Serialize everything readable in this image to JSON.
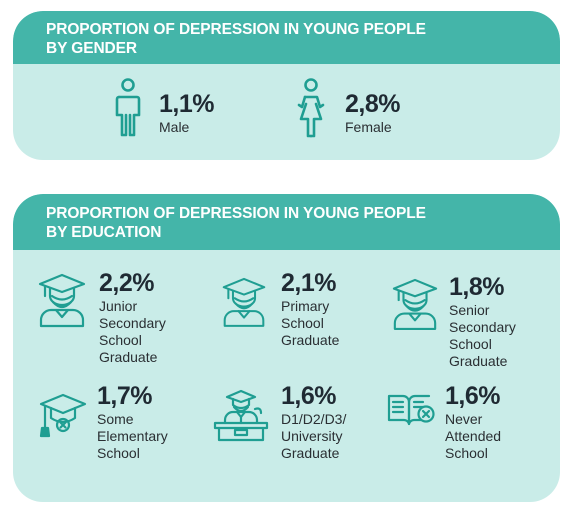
{
  "gender": {
    "title_line1": "PROPORTION OF DEPRESSION IN YOUNG PEOPLE",
    "title_line2": "BY GENDER",
    "items": [
      {
        "icon": "male-icon",
        "value": "1,1%",
        "label": "Male"
      },
      {
        "icon": "female-icon",
        "value": "2,8%",
        "label": "Female"
      }
    ]
  },
  "education": {
    "title_line1": "PROPORTION OF DEPRESSION IN YOUNG PEOPLE",
    "title_line2": "BY EDUCATION",
    "items": [
      {
        "icon": "graduate-icon",
        "value": "2,2%",
        "label_lines": [
          "Junior",
          "Secondary",
          "School",
          "Graduate"
        ]
      },
      {
        "icon": "graduate-icon",
        "value": "2,1%",
        "label_lines": [
          "Primary",
          "School",
          "Graduate"
        ]
      },
      {
        "icon": "graduate-icon",
        "value": "1,8%",
        "label_lines": [
          "Senior",
          "Secondary",
          "School",
          "Graduate"
        ]
      },
      {
        "icon": "graduation-cap-x-icon",
        "value": "1,7%",
        "label_lines": [
          "Some",
          "Elementary",
          "School"
        ]
      },
      {
        "icon": "speaker-podium-icon",
        "value": "1,6%",
        "label_lines": [
          "D1/D2/D3/",
          "University",
          "Graduate"
        ]
      },
      {
        "icon": "book-x-icon",
        "value": "1,6%",
        "label_lines": [
          "Never",
          "Attended",
          "School"
        ]
      }
    ]
  },
  "colors": {
    "band": "#44b5a9",
    "card": "#c9ece8",
    "icon": "#1f9e92",
    "text": "#1f2a33"
  }
}
